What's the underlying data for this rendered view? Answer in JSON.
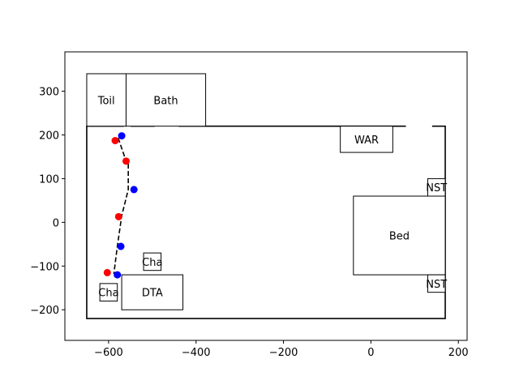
{
  "chart_data": {
    "type": "scatter",
    "title": "",
    "xlabel": "",
    "ylabel": "",
    "xlim": [
      -700,
      220
    ],
    "ylim": [
      -270,
      390
    ],
    "xticks": [
      -600,
      -400,
      -200,
      0,
      200
    ],
    "yticks": [
      -200,
      -100,
      0,
      100,
      200,
      300
    ],
    "grid": false,
    "outer_wall": {
      "x1": -650,
      "y1": -220,
      "x2": 170,
      "y2": 220
    },
    "wall_gaps": [
      {
        "x1": -565,
        "x2": -550,
        "y": 220
      },
      {
        "x1": -495,
        "x2": -440,
        "y": 220
      },
      {
        "x1": 80,
        "x2": 140,
        "y": 220
      }
    ],
    "rooms": [
      {
        "label": "Toil",
        "x1": -650,
        "y1": 220,
        "x2": -560,
        "y2": 340
      },
      {
        "label": "Bath",
        "x1": -560,
        "y1": 220,
        "x2": -378,
        "y2": 340
      },
      {
        "label": "WAR",
        "x1": -70,
        "y1": 160,
        "x2": 50,
        "y2": 220
      },
      {
        "label": "NST",
        "x1": 130,
        "y1": 60,
        "x2": 170,
        "y2": 100
      },
      {
        "label": "Bed",
        "x1": -40,
        "y1": -120,
        "x2": 170,
        "y2": 60
      },
      {
        "label": "NST",
        "x1": 130,
        "y1": -160,
        "x2": 170,
        "y2": -120
      },
      {
        "label": "Cha",
        "x1": -520,
        "y1": -110,
        "x2": -480,
        "y2": -70
      },
      {
        "label": "DTA",
        "x1": -570,
        "y1": -200,
        "x2": -430,
        "y2": -120
      },
      {
        "label": "Cha",
        "x1": -620,
        "y1": -180,
        "x2": -580,
        "y2": -140
      }
    ],
    "path": {
      "x": [
        -578,
        -560,
        -555,
        -555,
        -570,
        -580,
        -588
      ],
      "y": [
        193,
        140,
        140,
        75,
        15,
        -55,
        -118
      ]
    },
    "series": [
      {
        "color": "#0000ff",
        "points": [
          {
            "x": -570,
            "y": 198
          },
          {
            "x": -542,
            "y": 75
          },
          {
            "x": -572,
            "y": -55
          },
          {
            "x": -580,
            "y": -120
          }
        ]
      },
      {
        "color": "#ff0000",
        "points": [
          {
            "x": -585,
            "y": 187
          },
          {
            "x": -560,
            "y": 140
          },
          {
            "x": -577,
            "y": 13
          },
          {
            "x": -603,
            "y": -115
          }
        ]
      }
    ]
  }
}
